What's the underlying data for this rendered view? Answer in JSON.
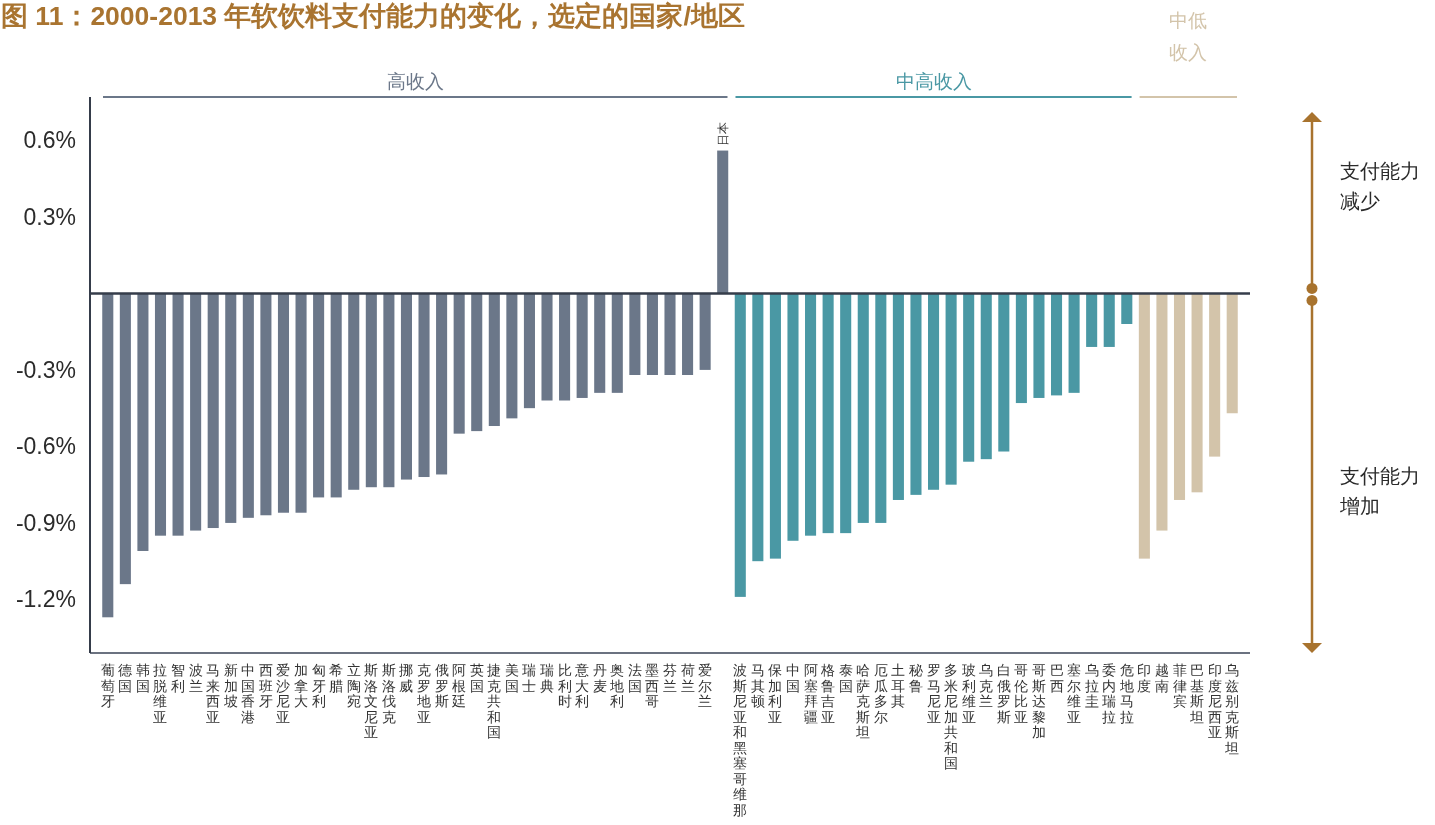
{
  "chart_data": {
    "type": "bar",
    "title": "图 11：2000-2013 年软饮料支付能力的变化，选定的国家/地区",
    "categories": [
      "葡萄牙",
      "德国",
      "韩国",
      "拉脱维亚",
      "智利",
      "波兰",
      "马来西亚",
      "新加坡",
      "中国香港",
      "西班牙",
      "爱沙尼亚",
      "加拿大",
      "匈牙利",
      "希腊",
      "立陶宛",
      "斯洛文尼亚",
      "斯洛伐克",
      "挪威",
      "克罗地亚",
      "俄罗斯",
      "阿根廷",
      "英国",
      "捷克共和国",
      "美国",
      "瑞士",
      "瑞典",
      "比利时",
      "意大利",
      "丹麦",
      "奥地利",
      "法国",
      "墨西哥",
      "芬兰",
      "荷兰",
      "爱尔兰",
      "日本",
      "波斯尼亚和黑塞哥维那",
      "马其顿",
      "保加利亚",
      "中国",
      "阿塞拜疆",
      "格鲁吉亚",
      "泰国",
      "哈萨克斯坦",
      "厄瓜多尔",
      "土耳其",
      "秘鲁",
      "罗马尼亚",
      "多米尼加共和国",
      "玻利维亚",
      "乌克兰",
      "白俄罗斯",
      "哥伦比亚",
      "哥斯达黎加",
      "巴西",
      "塞尔维亚",
      "乌拉圭",
      "委内瑞拉",
      "危地马拉",
      "印度",
      "越南",
      "菲律宾",
      "巴基斯坦",
      "印度尼西亚",
      "乌兹别克斯坦"
    ],
    "series": [
      {
        "name": "高收入",
        "color": "#6b7789",
        "values": [
          -1.27,
          -1.14,
          -1.01,
          -0.95,
          -0.95,
          -0.93,
          -0.92,
          -0.9,
          -0.88,
          -0.87,
          -0.86,
          -0.86,
          -0.8,
          -0.8,
          -0.77,
          -0.76,
          -0.76,
          -0.73,
          -0.72,
          -0.71,
          -0.55,
          -0.54,
          -0.52,
          -0.49,
          -0.45,
          -0.42,
          -0.42,
          -0.41,
          -0.39,
          -0.39,
          -0.32,
          -0.32,
          -0.32,
          -0.32,
          -0.3,
          0.56,
          null,
          null,
          null,
          null,
          null,
          null,
          null,
          null,
          null,
          null,
          null,
          null,
          null,
          null,
          null,
          null,
          null,
          null,
          null,
          null,
          null,
          null,
          null,
          null,
          null,
          null,
          null,
          null,
          null
        ]
      },
      {
        "name": "中高收入",
        "color": "#4a98a4",
        "values": [
          null,
          null,
          null,
          null,
          null,
          null,
          null,
          null,
          null,
          null,
          null,
          null,
          null,
          null,
          null,
          null,
          null,
          null,
          null,
          null,
          null,
          null,
          null,
          null,
          null,
          null,
          null,
          null,
          null,
          null,
          null,
          null,
          null,
          null,
          null,
          null,
          -1.19,
          -1.05,
          -1.04,
          -0.97,
          -0.95,
          -0.94,
          -0.94,
          -0.9,
          -0.9,
          -0.81,
          -0.79,
          -0.77,
          -0.75,
          -0.66,
          -0.65,
          -0.62,
          -0.43,
          -0.41,
          -0.4,
          -0.39,
          -0.21,
          -0.21,
          -0.12,
          null,
          null,
          null,
          null,
          null,
          null
        ]
      },
      {
        "name": "中低收入",
        "color": "#d3c4aa",
        "values": [
          null,
          null,
          null,
          null,
          null,
          null,
          null,
          null,
          null,
          null,
          null,
          null,
          null,
          null,
          null,
          null,
          null,
          null,
          null,
          null,
          null,
          null,
          null,
          null,
          null,
          null,
          null,
          null,
          null,
          null,
          null,
          null,
          null,
          null,
          null,
          null,
          null,
          null,
          null,
          null,
          null,
          null,
          null,
          null,
          null,
          null,
          null,
          null,
          null,
          null,
          null,
          null,
          null,
          null,
          null,
          null,
          null,
          null,
          null,
          -1.04,
          -0.93,
          -0.81,
          -0.78,
          -0.64,
          -0.47
        ]
      }
    ],
    "ylim": [
      -1.41,
      0.77
    ],
    "yticks": [
      {
        "value": -1.2,
        "label": "-1.2%"
      },
      {
        "value": -0.9,
        "label": "-0.9%"
      },
      {
        "value": -0.6,
        "label": "-0.6%"
      },
      {
        "value": -0.3,
        "label": "-0.3%"
      },
      {
        "value": 0.3,
        "label": "0.3%"
      },
      {
        "value": 0.6,
        "label": "0.6%"
      }
    ],
    "annotations": [
      "支付能力减少",
      "支付能力增加"
    ]
  }
}
